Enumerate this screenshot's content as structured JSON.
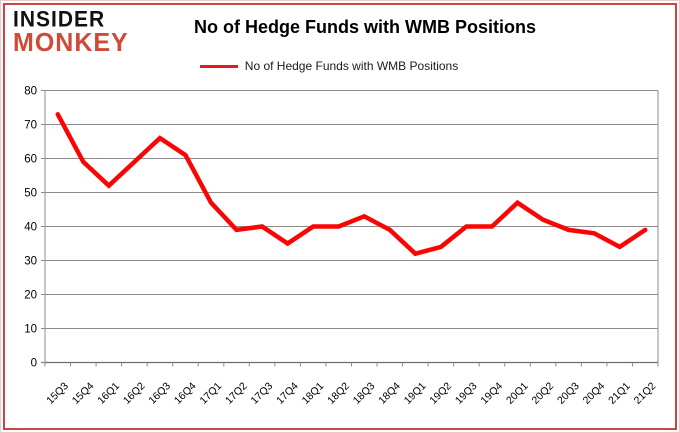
{
  "brand": {
    "line1": "INSIDER",
    "line2": "MONKEY"
  },
  "title": "No of Hedge Funds with WMB Positions",
  "legend": {
    "label": "No of Hedge Funds with WMB Positions",
    "color": "#e31b1c"
  },
  "colors": {
    "series_line": "#fb0404",
    "gridline": "#8c8c8c",
    "axis": "#6e6e6e",
    "tick": "#8c8c8c",
    "label_text": "#000000",
    "frame_border": "#c94646",
    "logo_red": "#cf4a38"
  },
  "chart_data": {
    "type": "line",
    "title": "No of Hedge Funds with WMB Positions",
    "legend_entries": [
      "No of Hedge Funds with WMB Positions"
    ],
    "legend_position": "top",
    "grid": "horizontal",
    "xlabel": "",
    "ylabel": "",
    "ylim": [
      0,
      80
    ],
    "ytick_step": 10,
    "ytick_labels": [
      "0",
      "10",
      "20",
      "30",
      "40",
      "50",
      "60",
      "70",
      "80"
    ],
    "categories": [
      "15Q3",
      "15Q4",
      "16Q1",
      "16Q2",
      "16Q3",
      "16Q4",
      "17Q1",
      "17Q2",
      "17Q3",
      "17Q4",
      "18Q1",
      "18Q2",
      "18Q3",
      "18Q4",
      "19Q1",
      "19Q2",
      "19Q3",
      "19Q4",
      "20Q1",
      "20Q2",
      "20Q3",
      "20Q4",
      "21Q1",
      "21Q2"
    ],
    "series": [
      {
        "name": "No of Hedge Funds with WMB Positions",
        "values": [
          73,
          59,
          52,
          59,
          66,
          61,
          47,
          39,
          40,
          35,
          40,
          40,
          43,
          39,
          32,
          34,
          40,
          40,
          47,
          42,
          39,
          38,
          34,
          39
        ]
      }
    ]
  }
}
